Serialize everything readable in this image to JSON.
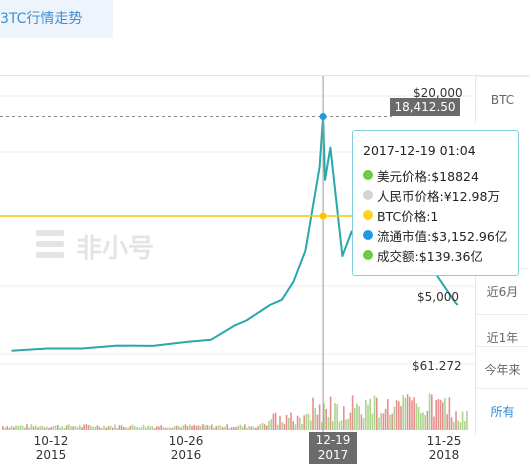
{
  "tab": {
    "title": "3TC行情走势"
  },
  "range_buttons": [
    "BTC",
    "近6月",
    "近1年",
    "今年来",
    "所有"
  ],
  "range_active": "所有",
  "watermark": "非小号",
  "crosshair": {
    "price_label": "18,412.50",
    "date_label": "12-19",
    "year_label": "2017"
  },
  "tooltip": {
    "datetime": "2017-12-19 01:04",
    "rows": [
      {
        "label": "美元价格:$18824",
        "color": "#6ecb3e",
        "icon": "green-dot"
      },
      {
        "label": "人民币价格:¥12.98万",
        "color": "#d4d4d4",
        "icon": "gray-dot"
      },
      {
        "label": "BTC价格:1",
        "color": "#ffd21f",
        "icon": "yellow-dot"
      },
      {
        "label": "流通市值:$3,152.96亿",
        "color": "#1f9bde",
        "icon": "blue-dot"
      },
      {
        "label": "成交额:$139.36亿",
        "color": "#6ecb3e",
        "icon": "green-dot"
      }
    ]
  },
  "chart_data": {
    "type": "line",
    "title": "",
    "xlabel": "",
    "ylabel": "",
    "x_ticks": [
      {
        "label": "10-12",
        "year": "2015"
      },
      {
        "label": "10-26",
        "year": "2016"
      },
      {
        "label": "11-25",
        "year": "2018"
      }
    ],
    "y_ticks": [
      "$20,000",
      "$5,000"
    ],
    "volume_axis_label": "$61.272",
    "ylim": [
      0,
      20000
    ],
    "series": [
      {
        "name": "",
        "color": "#2aa7a8",
        "points": [
          [
            "2015-10",
            250
          ],
          [
            "2016-01",
            430
          ],
          [
            "2016-04",
            430
          ],
          [
            "2016-07",
            650
          ],
          [
            "2016-10",
            630
          ],
          [
            "2017-01",
            950
          ],
          [
            "2017-03",
            1100
          ],
          [
            "2017-05",
            2200
          ],
          [
            "2017-06",
            2600
          ],
          [
            "2017-08",
            3800
          ],
          [
            "2017-09",
            4200
          ],
          [
            "2017-10",
            5600
          ],
          [
            "2017-11",
            8000
          ],
          [
            "2017-12-08",
            14500
          ],
          [
            "2017-12-17",
            18412.5
          ],
          [
            "2017-12-22",
            13500
          ],
          [
            "2018-01-05",
            16000
          ],
          [
            "2018-02-05",
            7600
          ],
          [
            "2018-03",
            9500
          ],
          [
            "2018-04",
            7000
          ],
          [
            "2018-05",
            9200
          ],
          [
            "2018-06",
            6500
          ],
          [
            "2018-08",
            6500
          ],
          [
            "2018-10",
            6400
          ],
          [
            "2018-11-25",
            4000
          ],
          [
            "2018-12",
            3800
          ]
        ]
      }
    ],
    "volume_color": "#e07b7b",
    "volume_color_2": "#9ccd7a",
    "grid": true,
    "legend": "none"
  },
  "colors": {
    "accent": "#3d8fd6",
    "yellow_line": "#ffc400",
    "line": "#2aa7a8"
  }
}
